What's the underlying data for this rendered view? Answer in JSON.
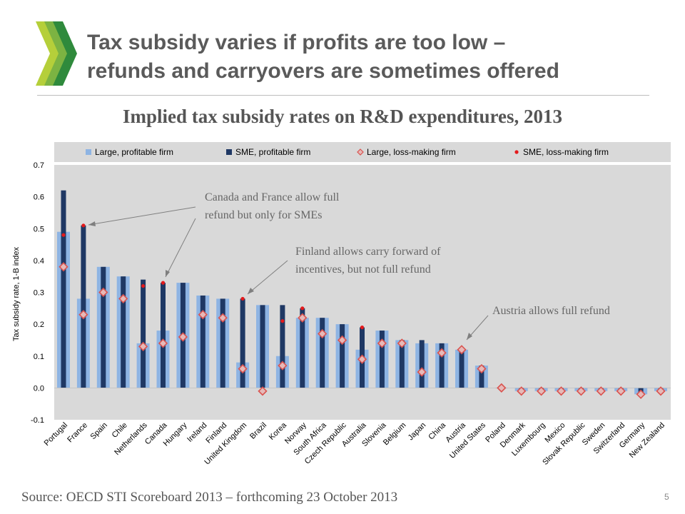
{
  "slide": {
    "title_line1": "Tax subsidy varies if profits are too low –",
    "title_line2": "refunds and carryovers are sometimes offered",
    "logo_icon": "oecd-chevron-logo",
    "logo_colors": [
      "#b5cf3a",
      "#7cb342",
      "#2f8a3c"
    ],
    "page_number": "5",
    "source": "Source: OECD STI Scoreboard 2013 – forthcoming 23 October 2013"
  },
  "chart_data": {
    "type": "bar",
    "title": "Implied tax subsidy rates on R&D expenditures, 2013",
    "ylabel": "Tax subsidy rate, 1-B index",
    "xlabel": "",
    "ylim": [
      -0.1,
      0.7
    ],
    "yticks": [
      -0.1,
      0.0,
      0.1,
      0.2,
      0.3,
      0.4,
      0.5,
      0.6,
      0.7
    ],
    "ytick_labels": [
      "-0.1",
      "0.0",
      "0.1",
      "0.2",
      "0.3",
      "0.4",
      "0.5",
      "0.6",
      "0.7"
    ],
    "grid": false,
    "legend_position": "top",
    "categories": [
      "Portugal",
      "France",
      "Spain",
      "Chile",
      "Netherlands",
      "Canada",
      "Hungary",
      "Ireland",
      "Finland",
      "United Kingdom",
      "Brazil",
      "Korea",
      "Norway",
      "South Africa",
      "Czech Republic",
      "Australia",
      "Slovenia",
      "Belgium",
      "Japan",
      "China",
      "Austria",
      "United States",
      "Poland",
      "Denmark",
      "Luxembourg",
      "Mexico",
      "Slovak Republic",
      "Sweden",
      "Switzerland",
      "Germany",
      "New Zealand"
    ],
    "series": [
      {
        "name": "Large, profitable firm",
        "kind": "bar-wide",
        "color": "#8eb4e3",
        "values": [
          0.49,
          0.28,
          0.38,
          0.35,
          0.14,
          0.18,
          0.33,
          0.29,
          0.28,
          0.08,
          0.26,
          0.1,
          0.22,
          0.22,
          0.2,
          0.12,
          0.18,
          0.15,
          0.14,
          0.14,
          0.12,
          0.07,
          0.0,
          -0.01,
          -0.01,
          -0.01,
          -0.01,
          -0.01,
          -0.01,
          -0.02,
          -0.01
        ]
      },
      {
        "name": "SME, profitable firm",
        "kind": "bar-narrow",
        "color": "#1f3864",
        "values": [
          0.62,
          0.51,
          0.38,
          0.35,
          0.34,
          0.33,
          0.33,
          0.29,
          0.28,
          0.28,
          0.26,
          0.26,
          0.25,
          0.22,
          0.2,
          0.19,
          0.18,
          0.15,
          0.15,
          0.14,
          0.12,
          0.07,
          0.0,
          -0.01,
          -0.01,
          -0.01,
          -0.01,
          -0.01,
          -0.01,
          -0.02,
          -0.01
        ]
      },
      {
        "name": "Large, loss-making firm",
        "kind": "diamond",
        "color": "#e6b9b8",
        "stroke": "#d9534f",
        "values": [
          0.38,
          0.23,
          0.3,
          0.28,
          0.13,
          0.14,
          0.16,
          0.23,
          0.22,
          0.06,
          -0.01,
          0.07,
          0.22,
          0.17,
          0.15,
          0.09,
          0.14,
          0.14,
          0.05,
          0.11,
          0.12,
          0.06,
          0.0,
          -0.01,
          -0.01,
          -0.01,
          -0.01,
          -0.01,
          -0.01,
          -0.02,
          -0.01
        ]
      },
      {
        "name": "SME, loss-making firm",
        "kind": "dot",
        "color": "#e41a1c",
        "values": [
          0.48,
          0.51,
          null,
          null,
          0.32,
          0.33,
          null,
          null,
          null,
          0.28,
          null,
          0.21,
          0.25,
          null,
          null,
          0.19,
          null,
          null,
          null,
          null,
          null,
          null,
          null,
          null,
          null,
          null,
          null,
          null,
          null,
          null,
          null
        ]
      }
    ],
    "annotations": [
      {
        "lines": [
          "Canada and France allow full",
          "refund but only for SMEs"
        ]
      },
      {
        "lines": [
          "Finland allows carry forward of",
          "incentives, but not full refund"
        ]
      },
      {
        "lines": [
          "Austria allows full refund"
        ]
      }
    ]
  }
}
